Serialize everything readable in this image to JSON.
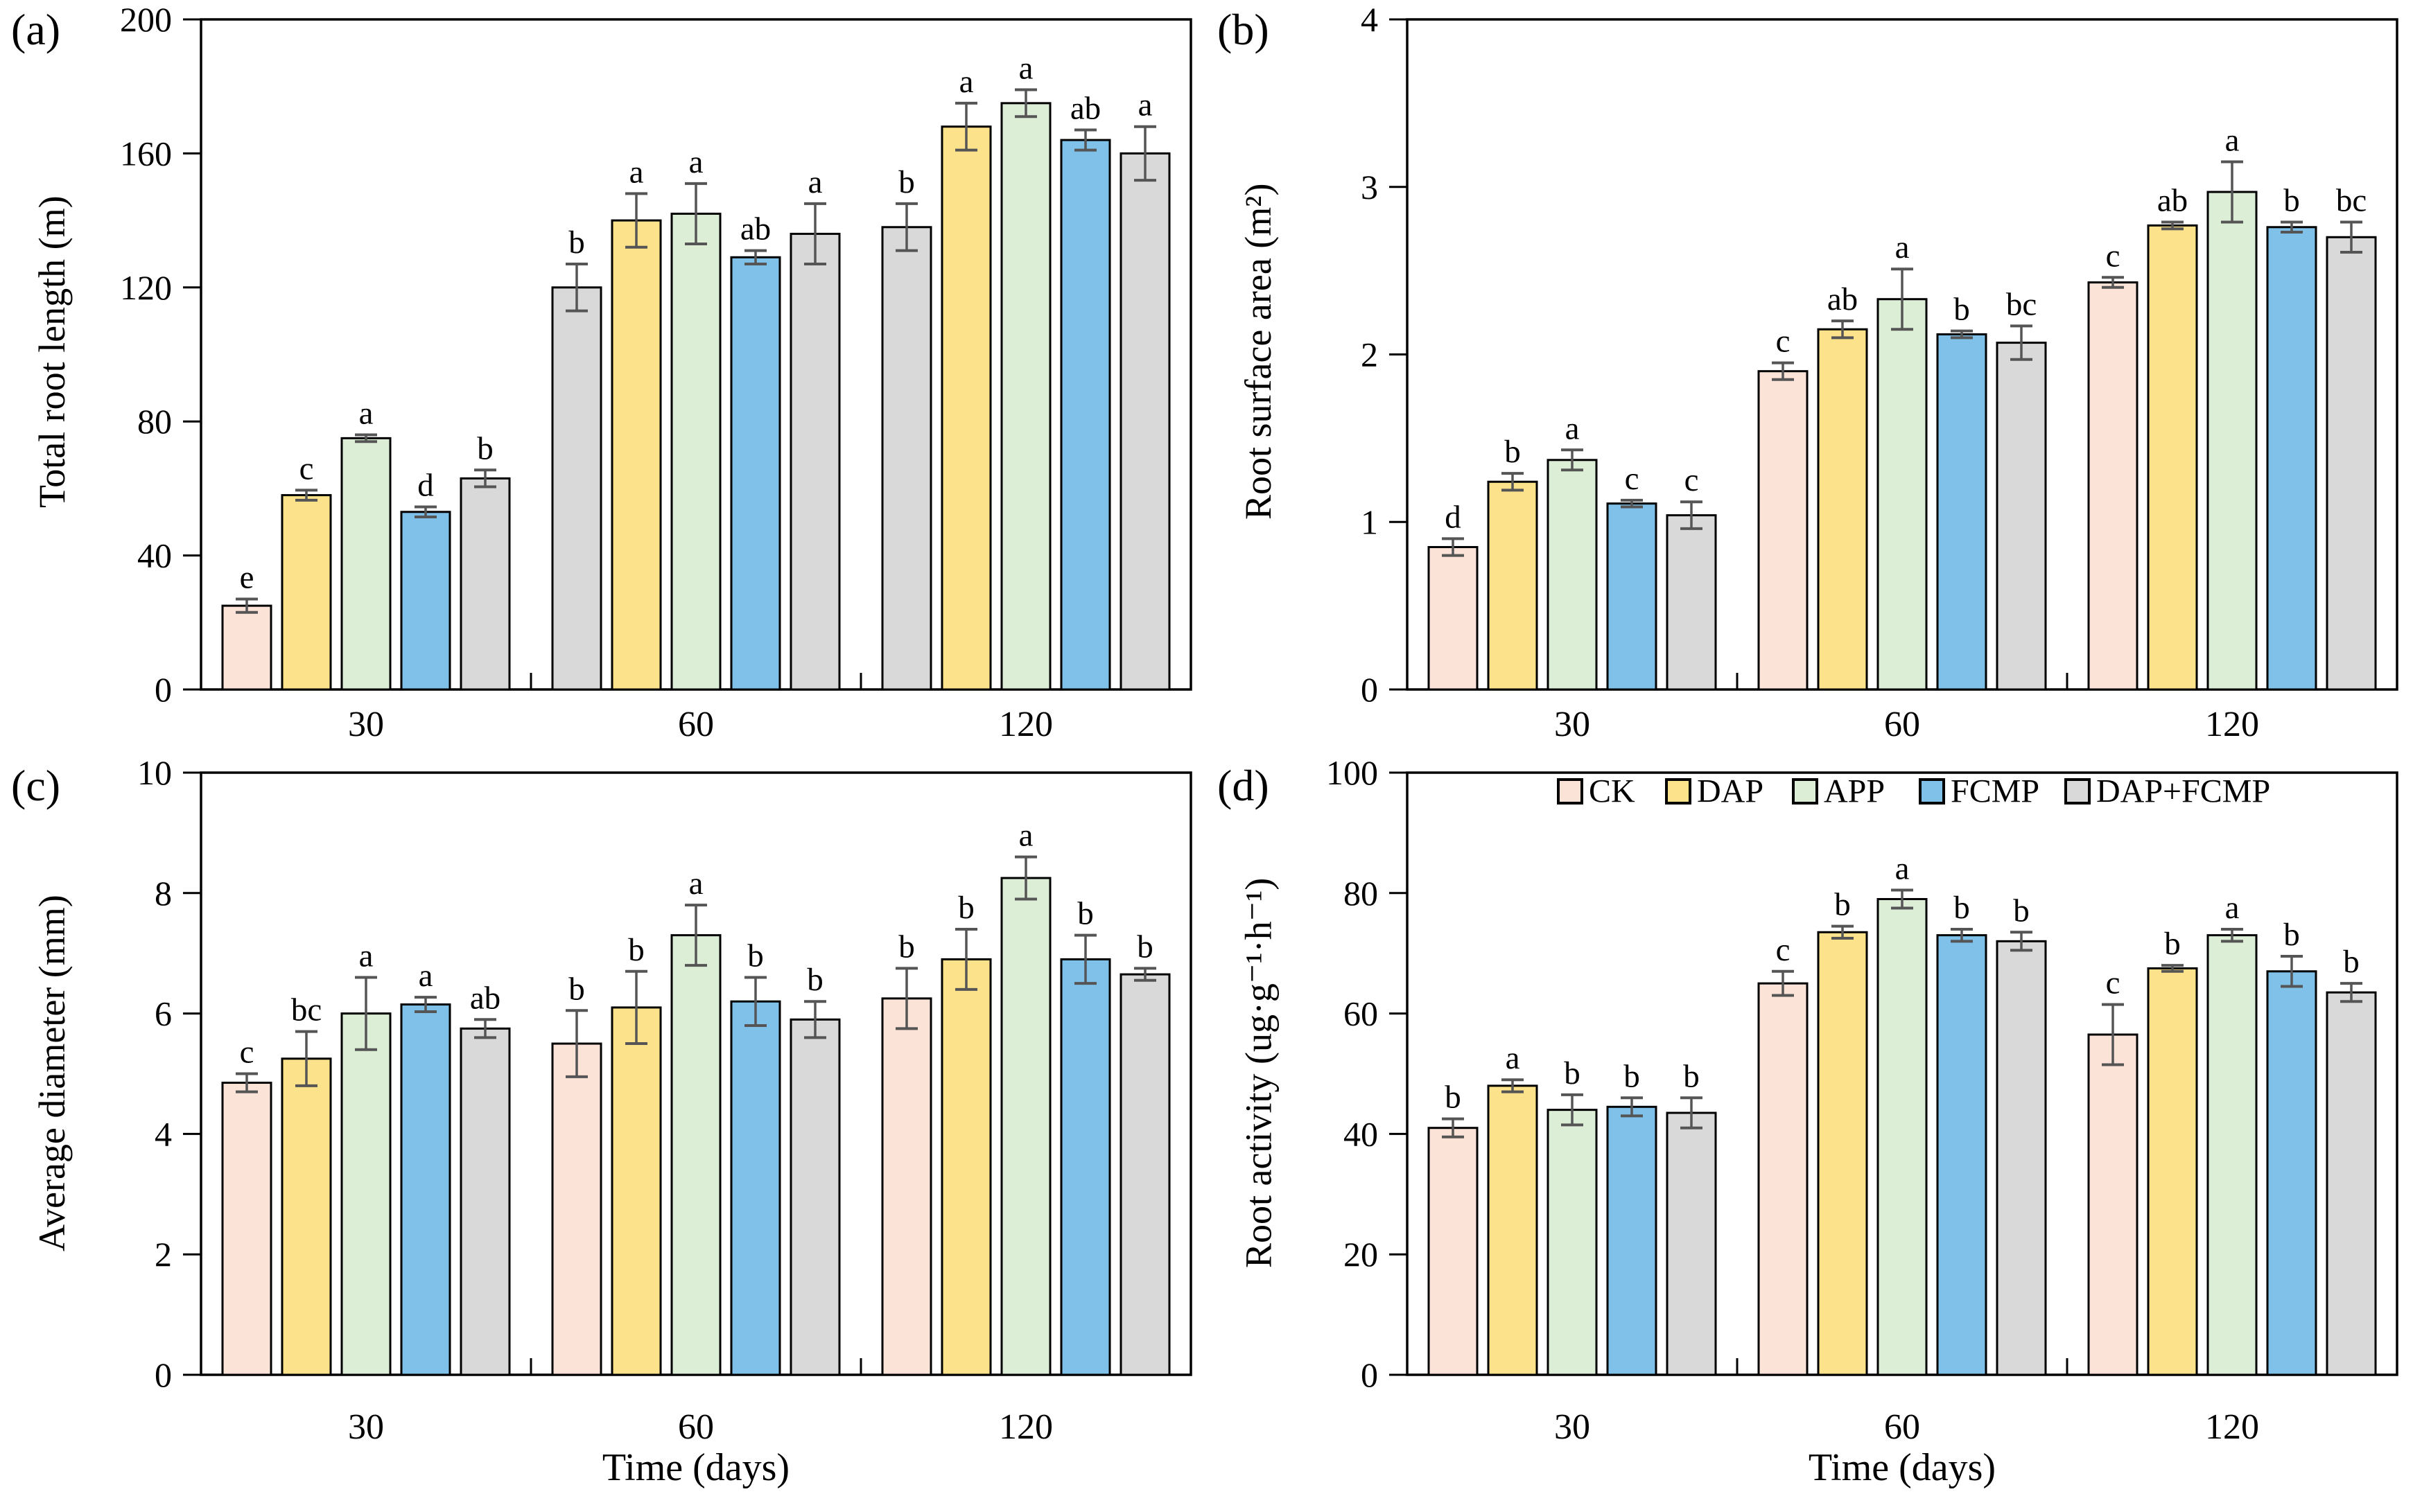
{
  "figure_title": "",
  "x_axis_title": "Time (days)",
  "colors": {
    "CK": "#fbe3d8",
    "DAP": "#fce28a",
    "APP": "#ddeed7",
    "FCMP": "#7fc1e9",
    "DAP+FCMP": "#d9d9d9"
  },
  "style": {
    "bar_border": "#000000",
    "error_bar": "#555555",
    "plot_border": "#000000"
  },
  "legend_items": [
    "CK",
    "DAP",
    "APP",
    "FCMP",
    "DAP+FCMP"
  ],
  "chart_data": [
    {
      "type": "bar",
      "label": "(a)",
      "ylabel": "Total root length (m)",
      "xlabel": "",
      "ylim": [
        0,
        200
      ],
      "ystep": 40,
      "categories": [
        "30",
        "60",
        "120"
      ],
      "series": [
        {
          "name": "CK",
          "values": [
            25,
            120,
            138
          ],
          "errors": [
            2,
            7,
            7
          ],
          "letters": [
            "e",
            "b",
            "b"
          ]
        },
        {
          "name": "DAP",
          "values": [
            58,
            140,
            168
          ],
          "errors": [
            1.5,
            8,
            7
          ],
          "letters": [
            "c",
            "a",
            "a"
          ]
        },
        {
          "name": "APP",
          "values": [
            75,
            142,
            175
          ],
          "errors": [
            1,
            9,
            4
          ],
          "letters": [
            "a",
            "a",
            "a"
          ]
        },
        {
          "name": "FCMP",
          "values": [
            53,
            129,
            164
          ],
          "errors": [
            1.5,
            2,
            3
          ],
          "letters": [
            "d",
            "ab",
            "ab"
          ]
        },
        {
          "name": "DAP+FCMP",
          "values": [
            63,
            136,
            160
          ],
          "errors": [
            2.5,
            9,
            8
          ],
          "letters": [
            "b",
            "a",
            "a"
          ]
        }
      ],
      "color_overrides": [
        {
          "group": 1,
          "series": 0,
          "color": "#d9d9d9"
        },
        {
          "group": 2,
          "series": 0,
          "color": "#d9d9d9"
        }
      ],
      "legend": false
    },
    {
      "type": "bar",
      "label": "(b)",
      "ylabel": "Root surface area (m²)",
      "xlabel": "",
      "ylim": [
        0,
        4
      ],
      "ystep": 1,
      "categories": [
        "30",
        "60",
        "120"
      ],
      "series": [
        {
          "name": "CK",
          "values": [
            0.85,
            1.9,
            2.43
          ],
          "errors": [
            0.05,
            0.05,
            0.03
          ],
          "letters": [
            "d",
            "c",
            "c"
          ]
        },
        {
          "name": "DAP",
          "values": [
            1.24,
            2.15,
            2.77
          ],
          "errors": [
            0.05,
            0.05,
            0.02
          ],
          "letters": [
            "b",
            "ab",
            "ab"
          ]
        },
        {
          "name": "APP",
          "values": [
            1.37,
            2.33,
            2.97
          ],
          "errors": [
            0.06,
            0.18,
            0.18
          ],
          "letters": [
            "a",
            "a",
            "a"
          ]
        },
        {
          "name": "FCMP",
          "values": [
            1.11,
            2.12,
            2.76
          ],
          "errors": [
            0.02,
            0.02,
            0.03
          ],
          "letters": [
            "c",
            "b",
            "b"
          ]
        },
        {
          "name": "DAP+FCMP",
          "values": [
            1.04,
            2.07,
            2.7
          ],
          "errors": [
            0.08,
            0.1,
            0.09
          ],
          "letters": [
            "c",
            "bc",
            "bc"
          ]
        }
      ],
      "color_overrides": [],
      "legend": false
    },
    {
      "type": "bar",
      "label": "(c)",
      "ylabel": "Average diameter (mm)",
      "xlabel": "Time (days)",
      "ylim": [
        0,
        10
      ],
      "ystep": 2,
      "categories": [
        "30",
        "60",
        "120"
      ],
      "series": [
        {
          "name": "CK",
          "values": [
            4.85,
            5.5,
            6.25
          ],
          "errors": [
            0.15,
            0.55,
            0.5
          ],
          "letters": [
            "c",
            "b",
            "b"
          ]
        },
        {
          "name": "DAP",
          "values": [
            5.25,
            6.1,
            6.9
          ],
          "errors": [
            0.45,
            0.6,
            0.5
          ],
          "letters": [
            "bc",
            "b",
            "b"
          ]
        },
        {
          "name": "APP",
          "values": [
            6.0,
            7.3,
            8.25
          ],
          "errors": [
            0.6,
            0.5,
            0.35
          ],
          "letters": [
            "a",
            "a",
            "a"
          ]
        },
        {
          "name": "FCMP",
          "values": [
            6.15,
            6.2,
            6.9
          ],
          "errors": [
            0.12,
            0.4,
            0.4
          ],
          "letters": [
            "a",
            "b",
            "b"
          ]
        },
        {
          "name": "DAP+FCMP",
          "values": [
            5.75,
            5.9,
            6.65
          ],
          "errors": [
            0.15,
            0.3,
            0.1
          ],
          "letters": [
            "ab",
            "b",
            "b"
          ]
        }
      ],
      "color_overrides": [],
      "legend": false
    },
    {
      "type": "bar",
      "label": "(d)",
      "ylabel": "Root activity (ug·g⁻¹·h⁻¹)",
      "xlabel": "Time (days)",
      "ylim": [
        0,
        100
      ],
      "ystep": 20,
      "categories": [
        "30",
        "60",
        "120"
      ],
      "series": [
        {
          "name": "CK",
          "values": [
            41,
            65,
            56.5
          ],
          "errors": [
            1.5,
            2,
            5
          ],
          "letters": [
            "b",
            "c",
            "c"
          ]
        },
        {
          "name": "DAP",
          "values": [
            48,
            73.5,
            67.5
          ],
          "errors": [
            1,
            1,
            0.5
          ],
          "letters": [
            "a",
            "b",
            "b"
          ]
        },
        {
          "name": "APP",
          "values": [
            44,
            79,
            73
          ],
          "errors": [
            2.5,
            1.5,
            1
          ],
          "letters": [
            "b",
            "a",
            "a"
          ]
        },
        {
          "name": "FCMP",
          "values": [
            44.5,
            73,
            67
          ],
          "errors": [
            1.5,
            1,
            2.5
          ],
          "letters": [
            "b",
            "b",
            "b"
          ]
        },
        {
          "name": "DAP+FCMP",
          "values": [
            43.5,
            72,
            63.5
          ],
          "errors": [
            2.5,
            1.5,
            1.5
          ],
          "letters": [
            "b",
            "b",
            "b"
          ]
        }
      ],
      "color_overrides": [],
      "legend": true
    }
  ]
}
